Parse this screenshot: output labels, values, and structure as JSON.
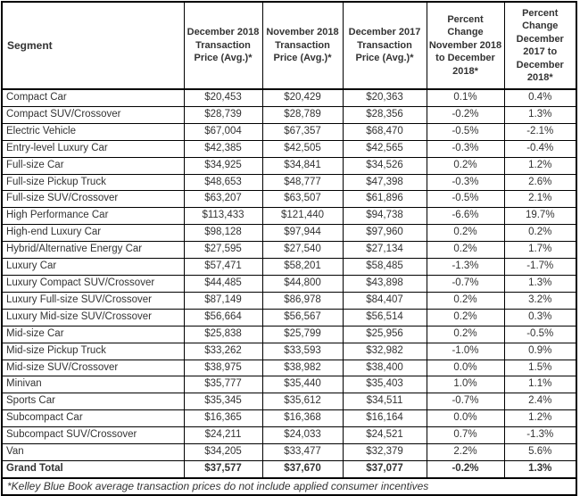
{
  "colors": {
    "border": "#000000",
    "text": "#333333",
    "background": "#ffffff"
  },
  "chart_data": {
    "type": "table",
    "columns": [
      "Segment",
      "December 2018 Transaction Price (Avg.)*",
      "November 2018 Transaction Price (Avg.)*",
      "December 2017 Transaction Price (Avg.)*",
      "Percent Change November 2018 to December 2018*",
      "Percent Change December 2017 to December 2018*"
    ],
    "rows": [
      {
        "segment": "Compact Car",
        "values": [
          "$20,453",
          "$20,429",
          "$20,363",
          "0.1%",
          "0.4%"
        ],
        "bold": false
      },
      {
        "segment": "Compact SUV/Crossover",
        "values": [
          "$28,739",
          "$28,789",
          "$28,356",
          "-0.2%",
          "1.3%"
        ],
        "bold": false
      },
      {
        "segment": "Electric Vehicle",
        "values": [
          "$67,004",
          "$67,357",
          "$68,470",
          "-0.5%",
          "-2.1%"
        ],
        "bold": false
      },
      {
        "segment": "Entry-level Luxury Car",
        "values": [
          "$42,385",
          "$42,505",
          "$42,565",
          "-0.3%",
          "-0.4%"
        ],
        "bold": false
      },
      {
        "segment": "Full-size Car",
        "values": [
          "$34,925",
          "$34,841",
          "$34,526",
          "0.2%",
          "1.2%"
        ],
        "bold": false
      },
      {
        "segment": "Full-size Pickup Truck",
        "values": [
          "$48,653",
          "$48,777",
          "$47,398",
          "-0.3%",
          "2.6%"
        ],
        "bold": false
      },
      {
        "segment": "Full-size SUV/Crossover",
        "values": [
          "$63,207",
          "$63,507",
          "$61,896",
          "-0.5%",
          "2.1%"
        ],
        "bold": false
      },
      {
        "segment": "High Performance Car",
        "values": [
          "$113,433",
          "$121,440",
          "$94,738",
          "-6.6%",
          "19.7%"
        ],
        "bold": false
      },
      {
        "segment": "High-end Luxury Car",
        "values": [
          "$98,128",
          "$97,944",
          "$97,960",
          "0.2%",
          "0.2%"
        ],
        "bold": false
      },
      {
        "segment": "Hybrid/Alternative Energy Car",
        "values": [
          "$27,595",
          "$27,540",
          "$27,134",
          "0.2%",
          "1.7%"
        ],
        "bold": false
      },
      {
        "segment": "Luxury Car",
        "values": [
          "$57,471",
          "$58,201",
          "$58,485",
          "-1.3%",
          "-1.7%"
        ],
        "bold": false
      },
      {
        "segment": "Luxury Compact SUV/Crossover",
        "values": [
          "$44,485",
          "$44,800",
          "$43,898",
          "-0.7%",
          "1.3%"
        ],
        "bold": false
      },
      {
        "segment": "Luxury Full-size SUV/Crossover",
        "values": [
          "$87,149",
          "$86,978",
          "$84,407",
          "0.2%",
          "3.2%"
        ],
        "bold": false
      },
      {
        "segment": "Luxury Mid-size SUV/Crossover",
        "values": [
          "$56,664",
          "$56,567",
          "$56,514",
          "0.2%",
          "0.3%"
        ],
        "bold": false
      },
      {
        "segment": "Mid-size Car",
        "values": [
          "$25,838",
          "$25,799",
          "$25,956",
          "0.2%",
          "-0.5%"
        ],
        "bold": false
      },
      {
        "segment": "Mid-size Pickup Truck",
        "values": [
          "$33,262",
          "$33,593",
          "$32,982",
          "-1.0%",
          "0.9%"
        ],
        "bold": false
      },
      {
        "segment": "Mid-size SUV/Crossover",
        "values": [
          "$38,975",
          "$38,982",
          "$38,400",
          "0.0%",
          "1.5%"
        ],
        "bold": false
      },
      {
        "segment": "Minivan",
        "values": [
          "$35,777",
          "$35,440",
          "$35,403",
          "1.0%",
          "1.1%"
        ],
        "bold": false
      },
      {
        "segment": "Sports Car",
        "values": [
          "$35,345",
          "$35,612",
          "$34,511",
          "-0.7%",
          "2.4%"
        ],
        "bold": false
      },
      {
        "segment": "Subcompact Car",
        "values": [
          "$16,365",
          "$16,368",
          "$16,164",
          "0.0%",
          "1.2%"
        ],
        "bold": false
      },
      {
        "segment": "Subcompact SUV/Crossover",
        "values": [
          "$24,211",
          "$24,033",
          "$24,521",
          "0.7%",
          "-1.3%"
        ],
        "bold": false
      },
      {
        "segment": "Van",
        "values": [
          "$34,205",
          "$33,477",
          "$32,379",
          "2.2%",
          "5.6%"
        ],
        "bold": false
      },
      {
        "segment": "Grand Total",
        "values": [
          "$37,577",
          "$37,670",
          "$37,077",
          "-0.2%",
          "1.3%"
        ],
        "bold": true
      }
    ],
    "footnote": "*Kelley Blue Book average transaction prices do not include applied consumer incentives"
  }
}
